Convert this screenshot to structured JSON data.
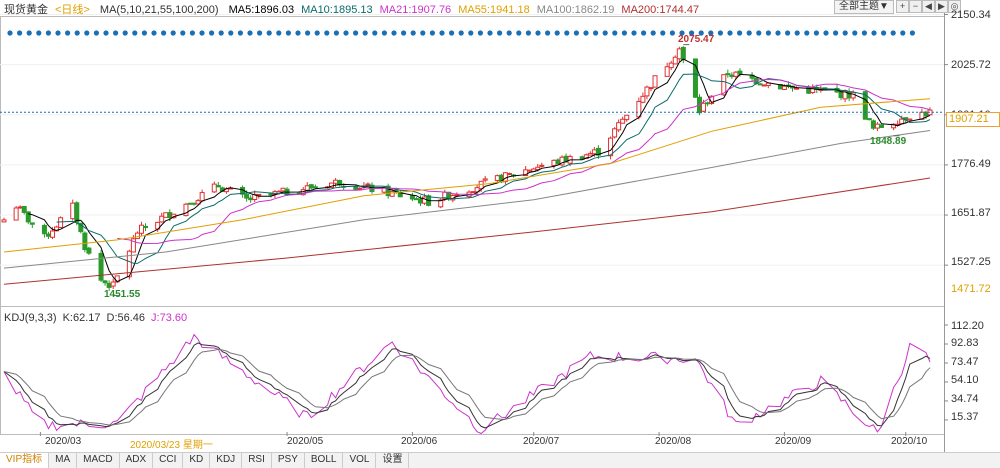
{
  "header": {
    "instrument": "现货黄金",
    "period": "<日线>",
    "ma_params": "MA(5,10,21,55,100,200)",
    "ma_values": [
      {
        "label": "MA5:1896.03",
        "color": "#000000"
      },
      {
        "label": "MA10:1895.13",
        "color": "#0a6b6b"
      },
      {
        "label": "MA21:1907.76",
        "color": "#cc33cc"
      },
      {
        "label": "MA55:1941.18",
        "color": "#e0a000"
      },
      {
        "label": "MA100:1862.19",
        "color": "#888888"
      },
      {
        "label": "MA200:1744.47",
        "color": "#b03030"
      }
    ],
    "theme_button": "全部主题▼",
    "controls": [
      "+",
      "−",
      "◀",
      "▶",
      "◎"
    ]
  },
  "kdj_legend": [
    {
      "label": "KDJ(9,3,3)",
      "color": "#333333"
    },
    {
      "label": "K:62.17",
      "color": "#333333"
    },
    {
      "label": "D:56.46",
      "color": "#333333"
    },
    {
      "label": "J:73.60",
      "color": "#cc33cc"
    }
  ],
  "price_axis": [
    "2150.34",
    "2025.72",
    "1901.10",
    "1776.49",
    "1651.87",
    "1527.25"
  ],
  "price_axis_bottom": "1471.72",
  "kdj_axis": [
    "112.20",
    "92.83",
    "73.47",
    "54.10",
    "34.74",
    "15.37"
  ],
  "last_price": "1907.21",
  "annotations": {
    "high": "2075.47",
    "low": "1451.55",
    "swing_low": "1848.89"
  },
  "x_labels": [
    "2020/03",
    "2020/03/23 星期一",
    "2020/05",
    "2020/06",
    "2020/07",
    "2020/08",
    "2020/09",
    "2020/10"
  ],
  "tabs": [
    "VIP指标",
    "MA",
    "MACD",
    "ADX",
    "CCI",
    "KD",
    "KDJ",
    "RSI",
    "PSY",
    "BOLL",
    "VOL",
    "设置"
  ],
  "colors": {
    "up": "#e03030",
    "down": "#2a9a2a",
    "accent": "#e0a000",
    "event_dot": "#1a6fb5"
  },
  "chart_data": [
    {
      "type": "candlestick",
      "title": "现货黄金 日线",
      "ylim": [
        1471.72,
        2150.34
      ],
      "x_ticks": [
        "2020/03",
        "2020/05",
        "2020/06",
        "2020/07",
        "2020/08",
        "2020/09",
        "2020/10"
      ],
      "anchors": [
        {
          "date": "2020-02-21",
          "close": 1640
        },
        {
          "date": "2020-02-24",
          "close": 1675
        },
        {
          "date": "2020-03-02",
          "close": 1595
        },
        {
          "date": "2020-03-09",
          "close": 1672
        },
        {
          "date": "2020-03-12",
          "close": 1575
        },
        {
          "date": "2020-03-16",
          "close": 1490
        },
        {
          "date": "2020-03-19",
          "close": 1475
        },
        {
          "date": "2020-03-25",
          "close": 1610
        },
        {
          "date": "2020-04-14",
          "close": 1725
        },
        {
          "date": "2020-04-21",
          "close": 1690
        },
        {
          "date": "2020-05-14",
          "close": 1735
        },
        {
          "date": "2020-06-05",
          "close": 1685
        },
        {
          "date": "2020-07-01",
          "close": 1770
        },
        {
          "date": "2020-07-17",
          "close": 1810
        },
        {
          "date": "2020-07-27",
          "close": 1940
        },
        {
          "date": "2020-08-06",
          "close": 2065
        },
        {
          "date": "2020-08-11",
          "close": 1910
        },
        {
          "date": "2020-08-18",
          "close": 2005
        },
        {
          "date": "2020-09-01",
          "close": 1970
        },
        {
          "date": "2020-09-18",
          "close": 1950
        },
        {
          "date": "2020-09-23",
          "close": 1865
        },
        {
          "date": "2020-10-02",
          "close": 1900
        },
        {
          "date": "2020-10-07",
          "close": 1907
        }
      ],
      "moving_averages": [
        {
          "name": "MA55",
          "points": [
            [
              "2020-02-21",
              1560
            ],
            [
              "2020-03-20",
              1590
            ],
            [
              "2020-04-20",
              1640
            ],
            [
              "2020-05-20",
              1700
            ],
            [
              "2020-06-20",
              1730
            ],
            [
              "2020-07-20",
              1780
            ],
            [
              "2020-08-14",
              1860
            ],
            [
              "2020-09-10",
              1920
            ],
            [
              "2020-10-07",
              1941
            ]
          ]
        },
        {
          "name": "MA100",
          "points": [
            [
              "2020-02-21",
              1520
            ],
            [
              "2020-04-01",
              1560
            ],
            [
              "2020-05-20",
              1640
            ],
            [
              "2020-07-01",
              1690
            ],
            [
              "2020-08-14",
              1770
            ],
            [
              "2020-09-15",
              1830
            ],
            [
              "2020-10-07",
              1862
            ]
          ]
        },
        {
          "name": "MA200",
          "points": [
            [
              "2020-02-21",
              1480
            ],
            [
              "2020-05-01",
              1545
            ],
            [
              "2020-07-01",
              1610
            ],
            [
              "2020-08-14",
              1660
            ],
            [
              "2020-10-07",
              1744
            ]
          ]
        }
      ],
      "annotations": [
        {
          "label": "2075.47",
          "date": "2020-08-07",
          "value": 2075.47
        },
        {
          "label": "1451.55",
          "date": "2020-03-19",
          "value": 1451.55
        },
        {
          "label": "1848.89",
          "date": "2020-09-28",
          "value": 1848.89
        }
      ],
      "last_price": 1907.21
    },
    {
      "type": "line",
      "title": "KDJ(9,3,3)",
      "ylim": [
        0,
        112.2
      ],
      "series": [
        {
          "name": "K",
          "last": 62.17
        },
        {
          "name": "D",
          "last": 56.46
        },
        {
          "name": "J",
          "last": 73.6
        }
      ],
      "anchors_J": [
        {
          "date": "2020-02-21",
          "value": 62
        },
        {
          "date": "2020-03-01",
          "value": 10
        },
        {
          "date": "2020-03-20",
          "value": 12
        },
        {
          "date": "2020-04-08",
          "value": 100
        },
        {
          "date": "2020-05-06",
          "value": 18
        },
        {
          "date": "2020-05-27",
          "value": 95
        },
        {
          "date": "2020-06-18",
          "value": 5
        },
        {
          "date": "2020-07-15",
          "value": 80
        },
        {
          "date": "2020-08-10",
          "value": 78
        },
        {
          "date": "2020-08-20",
          "value": 10
        },
        {
          "date": "2020-09-10",
          "value": 55
        },
        {
          "date": "2020-09-24",
          "value": 2
        },
        {
          "date": "2020-10-03",
          "value": 100
        },
        {
          "date": "2020-10-07",
          "value": 73.6
        }
      ]
    }
  ]
}
